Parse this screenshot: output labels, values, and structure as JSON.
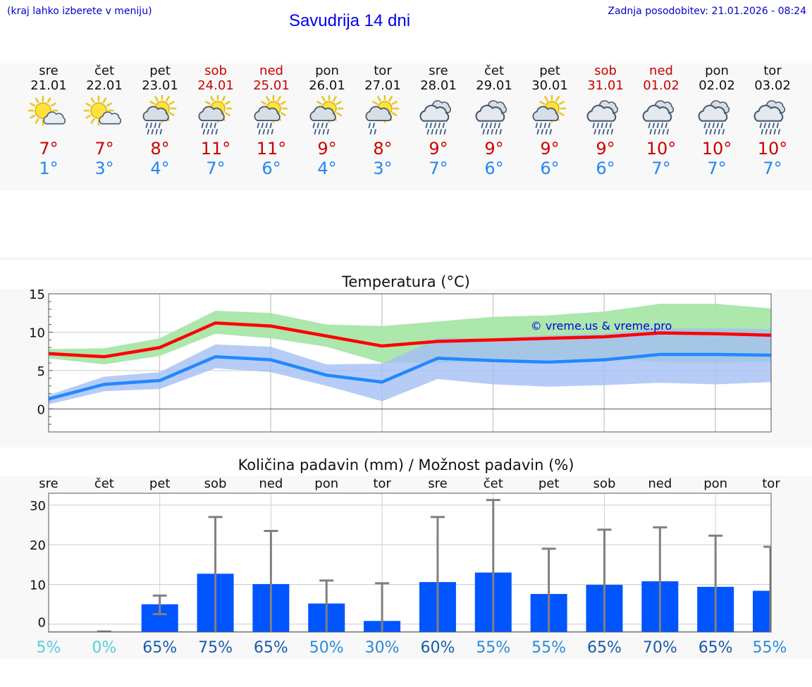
{
  "header": {
    "hint": "(kraj lahko izberete v meniju)",
    "title": "Savudrija 14 dni",
    "updated": "Zadnja posodobitev: 21.01.2026 - 08:24"
  },
  "days": [
    {
      "name": "sre",
      "date": "21.01",
      "icon": "sun-cloud",
      "max": "7°",
      "min": "1°",
      "weekend": false
    },
    {
      "name": "čet",
      "date": "22.01",
      "icon": "sun-cloud",
      "max": "7°",
      "min": "3°",
      "weekend": false
    },
    {
      "name": "pet",
      "date": "23.01",
      "icon": "sun-rain",
      "max": "8°",
      "min": "4°",
      "weekend": false
    },
    {
      "name": "sob",
      "date": "24.01",
      "icon": "sun-rain",
      "max": "11°",
      "min": "7°",
      "weekend": true
    },
    {
      "name": "ned",
      "date": "25.01",
      "icon": "sun-rain",
      "max": "11°",
      "min": "6°",
      "weekend": true
    },
    {
      "name": "pon",
      "date": "26.01",
      "icon": "sun-rain",
      "max": "9°",
      "min": "4°",
      "weekend": false
    },
    {
      "name": "tor",
      "date": "27.01",
      "icon": "sun-rain-light",
      "max": "8°",
      "min": "3°",
      "weekend": false
    },
    {
      "name": "sre",
      "date": "28.01",
      "icon": "cloud-rain",
      "max": "9°",
      "min": "7°",
      "weekend": false
    },
    {
      "name": "čet",
      "date": "29.01",
      "icon": "cloud-rain",
      "max": "9°",
      "min": "6°",
      "weekend": false
    },
    {
      "name": "pet",
      "date": "30.01",
      "icon": "sun-rain",
      "max": "9°",
      "min": "6°",
      "weekend": false
    },
    {
      "name": "sob",
      "date": "31.01",
      "icon": "cloud-rain",
      "max": "9°",
      "min": "6°",
      "weekend": true
    },
    {
      "name": "ned",
      "date": "01.02",
      "icon": "cloud-rain",
      "max": "10°",
      "min": "7°",
      "weekend": true
    },
    {
      "name": "pon",
      "date": "02.02",
      "icon": "cloud-rain",
      "max": "10°",
      "min": "7°",
      "weekend": false
    },
    {
      "name": "tor",
      "date": "03.02",
      "icon": "cloud-rain",
      "max": "10°",
      "min": "7°",
      "weekend": false
    }
  ],
  "chart_data": [
    {
      "type": "line",
      "title": "Temperatura (°C)",
      "watermark": "© vreme.us & vreme.pro",
      "ylim": [
        -3,
        15
      ],
      "yticks": [
        0,
        5,
        10,
        15
      ],
      "x": [
        0,
        1,
        2,
        3,
        4,
        5,
        6,
        7,
        8,
        9,
        10,
        11,
        12,
        13
      ],
      "colors": {
        "max": "#ff0000",
        "min": "#2288ff",
        "max_band": "#a8e6a8",
        "min_band": "#a4bff4",
        "overlap": "#6cb4a8"
      },
      "series": [
        {
          "name": "max",
          "values": [
            7.2,
            6.8,
            8.0,
            11.2,
            10.8,
            9.5,
            8.2,
            8.8,
            9.0,
            9.2,
            9.4,
            9.9,
            9.8,
            9.6
          ]
        },
        {
          "name": "max_low",
          "values": [
            6.6,
            5.8,
            6.9,
            9.8,
            9.2,
            8.1,
            6.0,
            6.0,
            6.2,
            6.4,
            6.6,
            6.1,
            6.0,
            6.2
          ]
        },
        {
          "name": "max_high",
          "values": [
            7.8,
            7.9,
            9.2,
            12.8,
            12.5,
            11.0,
            10.8,
            11.4,
            12.0,
            12.2,
            12.7,
            13.7,
            13.7,
            13.1
          ]
        },
        {
          "name": "min",
          "values": [
            1.3,
            3.2,
            3.7,
            6.8,
            6.4,
            4.4,
            3.5,
            6.6,
            6.3,
            6.1,
            6.4,
            7.1,
            7.1,
            7.0
          ]
        },
        {
          "name": "min_low",
          "values": [
            0.6,
            2.3,
            2.6,
            5.3,
            4.8,
            3.0,
            1.0,
            3.9,
            3.2,
            2.9,
            3.1,
            3.4,
            3.2,
            3.5
          ]
        },
        {
          "name": "min_high",
          "values": [
            1.8,
            4.2,
            4.8,
            8.4,
            8.1,
            5.8,
            5.9,
            9.2,
            9.2,
            9.6,
            9.8,
            10.5,
            10.5,
            10.4
          ]
        }
      ]
    },
    {
      "type": "bar",
      "title": "Količina padavin (mm) / Možnost padavin (%)",
      "ylim": [
        -2,
        33
      ],
      "yticks": [
        0,
        10,
        20,
        30
      ],
      "categories": [
        "sre",
        "čet",
        "pet",
        "sob",
        "ned",
        "pon",
        "tor",
        "sre",
        "čet",
        "pet",
        "sob",
        "ned",
        "pon",
        "tor"
      ],
      "colors": {
        "bar": "#0055ff",
        "whisker": "#808080"
      },
      "values": [
        0,
        0,
        5,
        12.7,
        10.1,
        5.2,
        0.8,
        10.6,
        13,
        7.6,
        9.9,
        10.8,
        9.4,
        8.4
      ],
      "err_low": [
        0,
        0,
        2.5,
        0,
        0,
        0,
        0,
        0,
        0,
        0,
        0,
        0,
        0,
        0
      ],
      "err_high": [
        0,
        0,
        7.2,
        27,
        23.5,
        11,
        10.3,
        27,
        31.3,
        19,
        23.8,
        24.4,
        22.3,
        19.5
      ],
      "probability": [
        "5%",
        "0%",
        "65%",
        "75%",
        "65%",
        "50%",
        "30%",
        "60%",
        "55%",
        "55%",
        "65%",
        "70%",
        "65%",
        "55%"
      ]
    }
  ]
}
